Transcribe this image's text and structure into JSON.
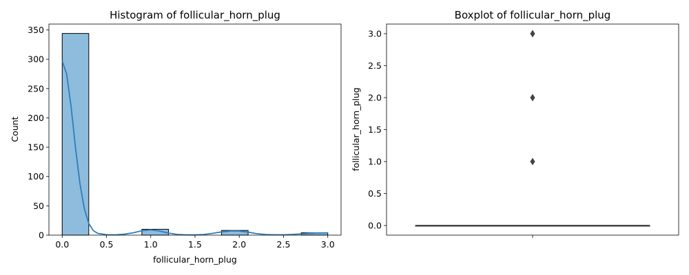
{
  "chart_data": [
    {
      "type": "bar",
      "title": "Histogram of follicular_horn_plug",
      "xlabel": "follicular_horn_plug",
      "ylabel": "Count",
      "xlim": [
        -0.15,
        3.15
      ],
      "ylim": [
        0,
        360
      ],
      "x_ticks": [
        "0.0",
        "0.5",
        "1.0",
        "1.5",
        "2.0",
        "2.5",
        "3.0"
      ],
      "x_tick_values": [
        0,
        0.5,
        1.0,
        1.5,
        2.0,
        2.5,
        3.0
      ],
      "y_ticks": [
        "0",
        "50",
        "100",
        "150",
        "200",
        "250",
        "300",
        "350"
      ],
      "y_tick_values": [
        0,
        50,
        100,
        150,
        200,
        250,
        300,
        350
      ],
      "bins": [
        {
          "x0": 0.0,
          "x1": 0.3,
          "count": 344
        },
        {
          "x0": 0.3,
          "x1": 0.6,
          "count": 0
        },
        {
          "x0": 0.6,
          "x1": 0.9,
          "count": 0
        },
        {
          "x0": 0.9,
          "x1": 1.2,
          "count": 10
        },
        {
          "x0": 1.2,
          "x1": 1.5,
          "count": 0
        },
        {
          "x0": 1.5,
          "x1": 1.8,
          "count": 0
        },
        {
          "x0": 1.8,
          "x1": 2.1,
          "count": 8
        },
        {
          "x0": 2.1,
          "x1": 2.4,
          "count": 0
        },
        {
          "x0": 2.4,
          "x1": 2.7,
          "count": 0
        },
        {
          "x0": 2.7,
          "x1": 3.0,
          "count": 4
        }
      ],
      "kde": {
        "x": [
          0.0,
          0.05,
          0.1,
          0.15,
          0.2,
          0.25,
          0.3,
          0.35,
          0.4,
          0.5,
          0.6,
          0.7,
          0.8,
          0.9,
          1.0,
          1.1,
          1.2,
          1.3,
          1.4,
          1.5,
          1.6,
          1.7,
          1.8,
          1.9,
          2.0,
          2.1,
          2.2,
          2.3,
          2.4,
          2.5,
          2.6,
          2.7,
          2.8,
          2.9,
          3.0
        ],
        "y": [
          297,
          275,
          220,
          150,
          88,
          45,
          20,
          8,
          3,
          0.7,
          0.5,
          1.5,
          4,
          7.5,
          9,
          7,
          3.5,
          1.2,
          0.5,
          0.4,
          1,
          3,
          5.5,
          7,
          7,
          5,
          2.5,
          1,
          0.6,
          0.6,
          1.2,
          2.2,
          3.2,
          3.8,
          4
        ]
      },
      "bar_color": "#8dbcdd",
      "line_color": "#2f7dba"
    },
    {
      "type": "box",
      "title": "Boxplot of follicular_horn_plug",
      "ylabel": "follicular_horn_plug",
      "ylim": [
        -0.15,
        3.15
      ],
      "y_ticks": [
        "0.0",
        "0.5",
        "1.0",
        "1.5",
        "2.0",
        "2.5",
        "3.0"
      ],
      "y_tick_values": [
        0,
        0.5,
        1.0,
        1.5,
        2.0,
        2.5,
        3.0
      ],
      "median": 0,
      "q1": 0,
      "q3": 0,
      "whisker_low": 0,
      "whisker_high": 0,
      "outliers": [
        1,
        2,
        3
      ],
      "box_color": "#4a76a8",
      "marker_color": "#444444"
    }
  ]
}
